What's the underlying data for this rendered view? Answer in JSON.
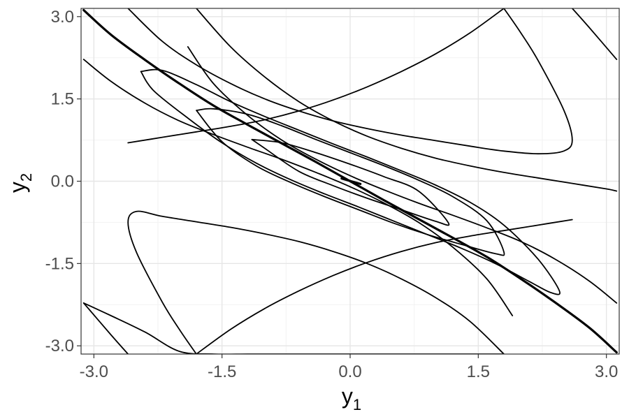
{
  "chart_data": {
    "type": "line",
    "subtype": "contour",
    "title": "",
    "xlabel": "y",
    "xlabel_subscript": "1",
    "ylabel": "y",
    "ylabel_subscript": "2",
    "xlim": [
      -3.15,
      3.15
    ],
    "ylim": [
      -3.15,
      3.15
    ],
    "x_ticks": [
      {
        "value": -3.0,
        "label": "-3.0"
      },
      {
        "value": -1.5,
        "label": "-1.5"
      },
      {
        "value": 0.0,
        "label": "0.0"
      },
      {
        "value": 1.5,
        "label": "1.5"
      },
      {
        "value": 3.0,
        "label": "3.0"
      }
    ],
    "y_ticks": [
      {
        "value": -3.0,
        "label": "-3.0"
      },
      {
        "value": -1.5,
        "label": "-1.5"
      },
      {
        "value": 0.0,
        "label": "0.0"
      },
      {
        "value": 1.5,
        "label": "1.5"
      },
      {
        "value": 3.0,
        "label": "3.0"
      }
    ],
    "minor_gridlines": [
      -2.25,
      -0.75,
      0.75,
      2.25
    ],
    "grid": true,
    "theme": "bw",
    "series": [
      {
        "role": "ridge",
        "thick": true,
        "x": [
          -3.12,
          -2.8,
          -2.4,
          -2.0,
          -1.6,
          -1.2,
          -0.8,
          -0.4,
          0.0,
          0.4,
          0.8,
          1.2,
          1.6,
          2.0,
          2.4,
          2.8,
          3.12
        ],
        "y": [
          3.12,
          2.67,
          2.21,
          1.78,
          1.38,
          1.03,
          0.69,
          0.35,
          0.0,
          -0.35,
          -0.69,
          -1.03,
          -1.38,
          -1.78,
          -2.21,
          -2.67,
          -3.12
        ]
      },
      {
        "role": "ellipse-inner",
        "thick": false,
        "x": [
          -1.15,
          -0.8,
          -0.4,
          0.0,
          0.4,
          0.8,
          1.15,
          1.0,
          0.6,
          0.2,
          -0.2,
          -0.6,
          -1.0,
          -1.15
        ],
        "y": [
          0.76,
          0.7,
          0.52,
          0.31,
          0.08,
          -0.18,
          -0.76,
          -0.73,
          -0.52,
          -0.31,
          -0.08,
          0.18,
          0.6,
          0.76
        ]
      },
      {
        "role": "ellipse-middle",
        "thick": false,
        "x": [
          -1.8,
          -1.6,
          -1.2,
          -0.8,
          -0.4,
          0.0,
          0.4,
          0.8,
          1.2,
          1.6,
          1.8,
          1.7,
          1.3,
          0.9,
          0.5,
          0.1,
          -0.3,
          -0.7,
          -1.1,
          -1.5,
          -1.8
        ],
        "y": [
          1.29,
          1.32,
          1.22,
          1.01,
          0.76,
          0.52,
          0.28,
          0.02,
          -0.28,
          -0.72,
          -1.29,
          -1.32,
          -1.15,
          -0.97,
          -0.76,
          -0.52,
          -0.28,
          -0.02,
          0.28,
          0.72,
          1.29
        ]
      },
      {
        "role": "ellipse-outer",
        "thick": false,
        "x": [
          -2.45,
          -2.2,
          -1.8,
          -1.4,
          -1.0,
          -0.6,
          -0.2,
          0.2,
          0.6,
          1.0,
          1.4,
          1.8,
          2.2,
          2.45,
          2.35,
          2.1,
          1.7,
          1.3,
          0.9,
          0.5,
          0.1,
          -0.3,
          -0.7,
          -1.1,
          -1.5,
          -1.9,
          -2.3,
          -2.45
        ],
        "y": [
          2.0,
          2.02,
          1.76,
          1.45,
          1.18,
          0.93,
          0.68,
          0.44,
          0.19,
          -0.07,
          -0.38,
          -0.8,
          -1.42,
          -2.0,
          -2.03,
          -1.83,
          -1.5,
          -1.22,
          -0.97,
          -0.72,
          -0.47,
          -0.23,
          0.03,
          0.33,
          0.7,
          1.15,
          1.65,
          2.0
        ]
      },
      {
        "role": "band-left-1",
        "thick": false,
        "x": [
          -3.12,
          -2.8,
          -2.4,
          -2.0,
          -1.6,
          -1.2,
          -0.8,
          -0.4,
          0.0,
          0.4,
          0.8,
          1.2,
          1.6,
          1.9
        ],
        "y": [
          2.22,
          1.82,
          1.42,
          1.1,
          0.85,
          0.62,
          0.4,
          0.16,
          -0.1,
          -0.4,
          -0.75,
          -1.2,
          -1.78,
          -2.45
        ]
      },
      {
        "role": "band-left-2",
        "thick": false,
        "x": [
          -3.12,
          -2.8,
          -2.4,
          -2.0,
          -1.6,
          -1.2,
          -0.8,
          -0.4,
          0.0,
          0.4,
          0.8,
          1.2,
          1.6,
          1.8
        ],
        "y": [
          -2.22,
          -2.45,
          -2.75,
          -3.1,
          -3.15,
          -3.15,
          -3.15,
          -3.15,
          -3.15,
          -3.15,
          -3.15,
          -3.15,
          -3.15,
          -3.15
        ]
      },
      {
        "role": "band-left-3",
        "thick": false,
        "x": [
          -1.8,
          -1.4,
          -1.0,
          -0.6,
          -0.2,
          0.2,
          0.6,
          1.0,
          1.4,
          1.8,
          2.2,
          2.6
        ],
        "y": [
          -3.15,
          -2.7,
          -2.32,
          -2.0,
          -1.72,
          -1.48,
          -1.28,
          -1.12,
          -1.0,
          -0.9,
          -0.8,
          -0.7
        ]
      },
      {
        "role": "band-right-1",
        "thick": false,
        "x": [
          -1.9,
          -1.6,
          -1.2,
          -0.8,
          -0.4,
          0.0,
          0.4,
          0.8,
          1.2,
          1.6,
          2.0,
          2.4,
          2.8,
          3.12
        ],
        "y": [
          2.45,
          1.78,
          1.2,
          0.75,
          0.4,
          0.1,
          -0.16,
          -0.4,
          -0.62,
          -0.85,
          -1.1,
          -1.42,
          -1.82,
          -2.22
        ]
      },
      {
        "role": "band-right-2",
        "thick": false,
        "x": [
          -1.8,
          -1.4,
          -1.0,
          -0.6,
          -0.2,
          0.2,
          0.6,
          1.0,
          1.4,
          1.8,
          2.2,
          2.6,
          3.0,
          3.12
        ],
        "y": [
          3.15,
          2.45,
          1.9,
          1.45,
          1.1,
          0.82,
          0.6,
          0.42,
          0.28,
          0.16,
          0.06,
          -0.04,
          -0.14,
          -0.18
        ]
      },
      {
        "role": "band-right-3",
        "thick": false,
        "x": [
          -2.6,
          -2.2,
          -1.8,
          -1.4,
          -1.0,
          -0.6,
          -0.2,
          0.2,
          0.6,
          1.0,
          1.4,
          1.8
        ],
        "y": [
          0.7,
          0.8,
          0.9,
          1.0,
          1.12,
          1.28,
          1.48,
          1.72,
          2.0,
          2.32,
          2.7,
          3.15
        ]
      },
      {
        "role": "loop-upper",
        "thick": false,
        "x": [
          -2.6,
          -2.2,
          -1.8,
          -1.4,
          -1.0,
          -0.6,
          -0.2,
          0.2,
          0.6,
          1.0,
          1.4,
          1.8,
          2.2,
          2.5,
          2.6,
          2.5,
          2.2,
          2.0,
          1.8
        ],
        "y": [
          3.15,
          2.55,
          2.12,
          1.78,
          1.5,
          1.28,
          1.1,
          0.96,
          0.84,
          0.74,
          0.64,
          0.55,
          0.5,
          0.55,
          0.75,
          1.3,
          2.2,
          2.7,
          3.15
        ]
      },
      {
        "role": "loop-lower",
        "thick": false,
        "x": [
          1.8,
          1.4,
          1.0,
          0.6,
          0.2,
          -0.2,
          -0.6,
          -1.0,
          -1.4,
          -1.8,
          -2.2,
          -2.5,
          -2.6,
          -2.5,
          -2.2,
          -2.0,
          -1.8
        ],
        "y": [
          -3.15,
          -2.55,
          -2.12,
          -1.78,
          -1.5,
          -1.28,
          -1.1,
          -0.96,
          -0.84,
          -0.74,
          -0.64,
          -0.55,
          -0.75,
          -1.3,
          -2.2,
          -2.7,
          -3.15
        ]
      },
      {
        "role": "corner-top-right",
        "thick": false,
        "x": [
          2.6,
          2.8,
          3.12
        ],
        "y": [
          3.15,
          2.8,
          2.22
        ]
      },
      {
        "role": "corner-bottom-left",
        "thick": false,
        "x": [
          -3.12,
          -2.8,
          -2.6
        ],
        "y": [
          -2.22,
          -2.8,
          -3.15
        ]
      },
      {
        "role": "center-dash",
        "thick": true,
        "x": [
          -0.1,
          0.12
        ],
        "y": [
          0.05,
          -0.05
        ]
      }
    ]
  }
}
